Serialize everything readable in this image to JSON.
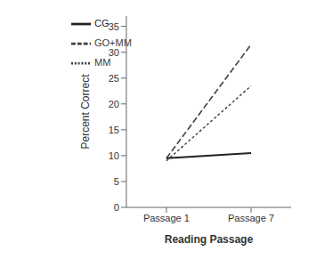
{
  "chart_data": {
    "type": "line",
    "categories": [
      "Passage 1",
      "Passage 7"
    ],
    "series": [
      {
        "name": "GO+MM",
        "color": "#404040",
        "values": [
          9.5,
          31.5
        ],
        "line_style": "dashed"
      },
      {
        "name": "MM",
        "color": "#404040",
        "values": [
          9.0,
          23.5
        ],
        "line_style": "dotted"
      },
      {
        "name": "CG",
        "color": "#222222",
        "values": [
          9.5,
          10.5
        ],
        "line_style": "solid"
      }
    ],
    "ylim": [
      0,
      37
    ],
    "yticks": [
      0,
      5,
      10,
      15,
      20,
      25,
      30,
      35
    ],
    "xlabel": "Reading Passage",
    "ylabel": "Percent Correct",
    "legend": "upper left",
    "grid": false
  }
}
